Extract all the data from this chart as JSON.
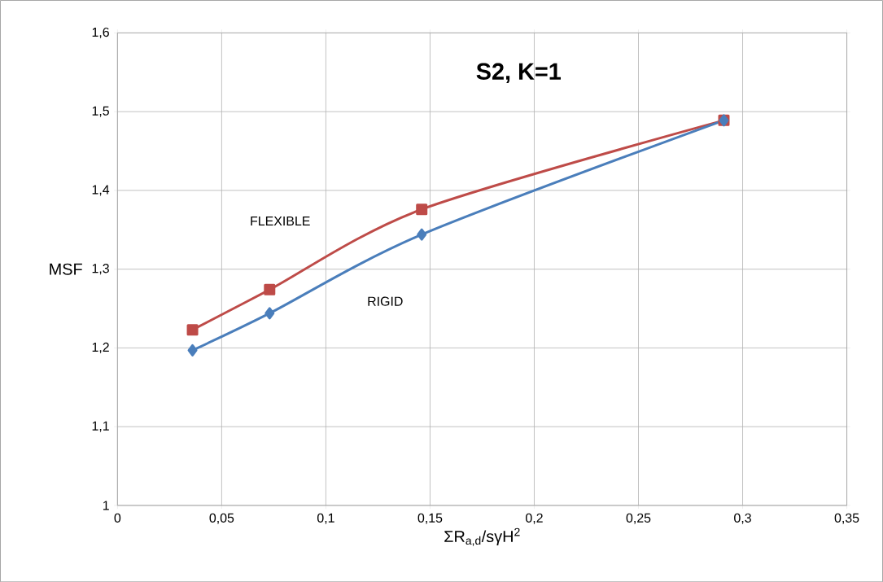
{
  "chart_data": {
    "type": "line",
    "title": "S2, K=1",
    "xlabel": "ΣR$_{a,d}$/sγH$^{2}$",
    "ylabel": "MSF",
    "x": [
      0.036,
      0.073,
      0.146,
      0.291
    ],
    "series": [
      {
        "name": "FLEXIBLE",
        "color": "#be4b48",
        "marker": "square",
        "values": [
          1.223,
          1.274,
          1.376,
          1.489
        ]
      },
      {
        "name": "RIGID",
        "color": "#4a7ebb",
        "marker": "diamond",
        "values": [
          1.197,
          1.244,
          1.344,
          1.489
        ]
      }
    ],
    "xlim": [
      0,
      0.35
    ],
    "ylim": [
      1,
      1.6
    ],
    "xticks": [
      0,
      {
        "value": 0.05,
        "label": "0,05"
      },
      {
        "value": 0.1,
        "label": "0,1"
      },
      {
        "value": 0.15,
        "label": "0,15"
      },
      {
        "value": 0.2,
        "label": "0,2"
      },
      {
        "value": 0.25,
        "label": "0,25"
      },
      {
        "value": 0.3,
        "label": "0,3"
      },
      {
        "value": 0.35,
        "label": "0,35"
      }
    ],
    "yticks": [
      1,
      {
        "value": 1.1,
        "label": "1,1"
      },
      {
        "value": 1.2,
        "label": "1,2"
      },
      {
        "value": 1.3,
        "label": "1,3"
      },
      {
        "value": 1.4,
        "label": "1,4"
      },
      {
        "value": 1.5,
        "label": "1,5"
      },
      {
        "value": 1.6,
        "label": "1,6"
      }
    ],
    "grid": true,
    "line_style": "solid"
  }
}
